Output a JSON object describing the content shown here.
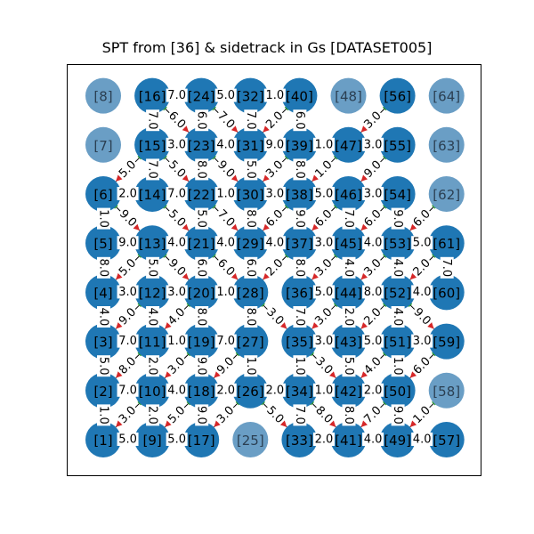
{
  "title": "SPT from [36] & sidetrack in Gs [DATASET005]",
  "colors": {
    "node": "#1f77b4",
    "node_faded": "#6a9ec5",
    "edge": "#000000",
    "arrow_red": "#d62728",
    "tail_green": "#2ca02c"
  },
  "grid": {
    "columns": 8,
    "rows": 8,
    "numbering": "column-major from bottom-left"
  },
  "faded_nodes": [
    "[8]",
    "[7]",
    "[48]",
    "[64]",
    "[63]",
    "[62]",
    "[58]",
    "[25]"
  ],
  "edges": [
    {
      "a": "[16]",
      "b": "[24]",
      "w": "7.0"
    },
    {
      "a": "[24]",
      "b": "[32]",
      "w": "5.0"
    },
    {
      "a": "[32]",
      "b": "[40]",
      "w": "1.0"
    },
    {
      "a": "[15]",
      "b": "[23]",
      "w": "3.0"
    },
    {
      "a": "[23]",
      "b": "[31]",
      "w": "4.0"
    },
    {
      "a": "[31]",
      "b": "[39]",
      "w": "9.0"
    },
    {
      "a": "[39]",
      "b": "[47]",
      "w": "1.0"
    },
    {
      "a": "[47]",
      "b": "[55]",
      "w": "3.0"
    },
    {
      "a": "[6]",
      "b": "[14]",
      "w": "2.0"
    },
    {
      "a": "[14]",
      "b": "[22]",
      "w": "7.0"
    },
    {
      "a": "[22]",
      "b": "[30]",
      "w": "1.0"
    },
    {
      "a": "[30]",
      "b": "[38]",
      "w": "3.0"
    },
    {
      "a": "[38]",
      "b": "[46]",
      "w": "5.0"
    },
    {
      "a": "[46]",
      "b": "[54]",
      "w": "3.0"
    },
    {
      "a": "[5]",
      "b": "[13]",
      "w": "9.0"
    },
    {
      "a": "[13]",
      "b": "[21]",
      "w": "4.0"
    },
    {
      "a": "[21]",
      "b": "[29]",
      "w": "4.0"
    },
    {
      "a": "[29]",
      "b": "[37]",
      "w": "4.0"
    },
    {
      "a": "[37]",
      "b": "[45]",
      "w": "3.0"
    },
    {
      "a": "[45]",
      "b": "[53]",
      "w": "4.0"
    },
    {
      "a": "[53]",
      "b": "[61]",
      "w": "5.0"
    },
    {
      "a": "[4]",
      "b": "[12]",
      "w": "3.0"
    },
    {
      "a": "[12]",
      "b": "[20]",
      "w": "3.0"
    },
    {
      "a": "[20]",
      "b": "[28]",
      "w": "1.0"
    },
    {
      "a": "[36]",
      "b": "[44]",
      "w": "5.0"
    },
    {
      "a": "[44]",
      "b": "[52]",
      "w": "8.0"
    },
    {
      "a": "[52]",
      "b": "[60]",
      "w": "4.0"
    },
    {
      "a": "[3]",
      "b": "[11]",
      "w": "7.0"
    },
    {
      "a": "[11]",
      "b": "[19]",
      "w": "1.0"
    },
    {
      "a": "[19]",
      "b": "[27]",
      "w": "7.0"
    },
    {
      "a": "[35]",
      "b": "[43]",
      "w": "3.0"
    },
    {
      "a": "[43]",
      "b": "[51]",
      "w": "5.0"
    },
    {
      "a": "[51]",
      "b": "[59]",
      "w": "3.0"
    },
    {
      "a": "[2]",
      "b": "[10]",
      "w": "7.0"
    },
    {
      "a": "[10]",
      "b": "[18]",
      "w": "4.0"
    },
    {
      "a": "[18]",
      "b": "[26]",
      "w": "2.0"
    },
    {
      "a": "[26]",
      "b": "[34]",
      "w": "2.0"
    },
    {
      "a": "[34]",
      "b": "[42]",
      "w": "1.0"
    },
    {
      "a": "[42]",
      "b": "[50]",
      "w": "2.0"
    },
    {
      "a": "[1]",
      "b": "[9]",
      "w": "5.0"
    },
    {
      "a": "[9]",
      "b": "[17]",
      "w": "5.0"
    },
    {
      "a": "[33]",
      "b": "[41]",
      "w": "2.0"
    },
    {
      "a": "[41]",
      "b": "[49]",
      "w": "4.0"
    },
    {
      "a": "[49]",
      "b": "[57]",
      "w": "4.0"
    },
    {
      "a": "[16]",
      "b": "[15]",
      "w": "7.0"
    },
    {
      "a": "[24]",
      "b": "[23]",
      "w": "6.0"
    },
    {
      "a": "[32]",
      "b": "[31]",
      "w": "7.0"
    },
    {
      "a": "[40]",
      "b": "[39]",
      "w": "6.0"
    },
    {
      "a": "[15]",
      "b": "[14]",
      "w": "7.0"
    },
    {
      "a": "[23]",
      "b": "[22]",
      "w": "8.0"
    },
    {
      "a": "[31]",
      "b": "[30]",
      "w": "5.0"
    },
    {
      "a": "[39]",
      "b": "[38]",
      "w": "8.0"
    },
    {
      "a": "[6]",
      "b": "[5]",
      "w": "1.0"
    },
    {
      "a": "[22]",
      "b": "[21]",
      "w": "5.0"
    },
    {
      "a": "[30]",
      "b": "[29]",
      "w": "8.0"
    },
    {
      "a": "[38]",
      "b": "[37]",
      "w": "9.0"
    },
    {
      "a": "[46]",
      "b": "[45]",
      "w": "7.0"
    },
    {
      "a": "[54]",
      "b": "[53]",
      "w": "9.0"
    },
    {
      "a": "[5]",
      "b": "[4]",
      "w": "8.0"
    },
    {
      "a": "[13]",
      "b": "[12]",
      "w": "5.0"
    },
    {
      "a": "[21]",
      "b": "[20]",
      "w": "6.0"
    },
    {
      "a": "[29]",
      "b": "[28]",
      "w": "6.0"
    },
    {
      "a": "[37]",
      "b": "[36]",
      "w": "8.0"
    },
    {
      "a": "[45]",
      "b": "[44]",
      "w": "4.0"
    },
    {
      "a": "[53]",
      "b": "[52]",
      "w": "4.0"
    },
    {
      "a": "[61]",
      "b": "[60]",
      "w": "7.0"
    },
    {
      "a": "[12]",
      "b": "[11]",
      "w": "4.0"
    },
    {
      "a": "[20]",
      "b": "[19]",
      "w": "8.0"
    },
    {
      "a": "[28]",
      "b": "[27]",
      "w": "8.0"
    },
    {
      "a": "[36]",
      "b": "[35]",
      "w": "7.0"
    },
    {
      "a": "[44]",
      "b": "[43]",
      "w": "2.0"
    },
    {
      "a": "[52]",
      "b": "[51]",
      "w": "4.0"
    },
    {
      "a": "[11]",
      "b": "[10]",
      "w": "2.0"
    },
    {
      "a": "[19]",
      "b": "[18]",
      "w": "9.0"
    },
    {
      "a": "[27]",
      "b": "[26]",
      "w": "1.0"
    },
    {
      "a": "[35]",
      "b": "[34]",
      "w": "1.0"
    },
    {
      "a": "[43]",
      "b": "[42]",
      "w": "5.0"
    },
    {
      "a": "[51]",
      "b": "[50]",
      "w": "1.0"
    },
    {
      "a": "[10]",
      "b": "[9]",
      "w": "2.0"
    },
    {
      "a": "[18]",
      "b": "[17]",
      "w": "9.0"
    },
    {
      "a": "[34]",
      "b": "[33]",
      "w": "7.0"
    },
    {
      "a": "[42]",
      "b": "[41]",
      "w": "8.0"
    },
    {
      "a": "[50]",
      "b": "[49]",
      "w": "9.0"
    },
    {
      "a": "[4]",
      "b": "[3]",
      "w": "4.0"
    },
    {
      "a": "[3]",
      "b": "[2]",
      "w": "5.0"
    },
    {
      "a": "[2]",
      "b": "[1]",
      "w": "1.0"
    },
    {
      "a": "[16]",
      "b": "[23]",
      "w": "6.0"
    },
    {
      "a": "[24]",
      "b": "[31]",
      "w": "7.0"
    },
    {
      "a": "[40]",
      "b": "[31]",
      "w": "2.0"
    },
    {
      "a": "[56]",
      "b": "[47]",
      "w": "3.0"
    },
    {
      "a": "[15]",
      "b": "[6]",
      "w": "5.0"
    },
    {
      "a": "[15]",
      "b": "[22]",
      "w": "5.0"
    },
    {
      "a": "[23]",
      "b": "[30]",
      "w": "9.0"
    },
    {
      "a": "[39]",
      "b": "[30]",
      "w": "3.0"
    },
    {
      "a": "[47]",
      "b": "[38]",
      "w": "1.0"
    },
    {
      "a": "[55]",
      "b": "[46]",
      "w": "9.0"
    },
    {
      "a": "[6]",
      "b": "[13]",
      "w": "9.0"
    },
    {
      "a": "[14]",
      "b": "[21]",
      "w": "5.0"
    },
    {
      "a": "[22]",
      "b": "[29]",
      "w": "7.0"
    },
    {
      "a": "[38]",
      "b": "[29]",
      "w": "6.0"
    },
    {
      "a": "[46]",
      "b": "[37]",
      "w": "6.0"
    },
    {
      "a": "[54]",
      "b": "[45]",
      "w": "6.0"
    },
    {
      "a": "[62]",
      "b": "[53]",
      "w": "6.0"
    },
    {
      "a": "[13]",
      "b": "[4]",
      "w": "5.0"
    },
    {
      "a": "[13]",
      "b": "[20]",
      "w": "9.0"
    },
    {
      "a": "[21]",
      "b": "[28]",
      "w": "6.0"
    },
    {
      "a": "[37]",
      "b": "[28]",
      "w": "2.0"
    },
    {
      "a": "[45]",
      "b": "[36]",
      "w": "3.0"
    },
    {
      "a": "[53]",
      "b": "[44]",
      "w": "3.0"
    },
    {
      "a": "[61]",
      "b": "[52]",
      "w": "2.0"
    },
    {
      "a": "[12]",
      "b": "[3]",
      "w": "9.0"
    },
    {
      "a": "[20]",
      "b": "[11]",
      "w": "4.0"
    },
    {
      "a": "[28]",
      "b": "[35]",
      "w": "3.0"
    },
    {
      "a": "[44]",
      "b": "[35]",
      "w": "3.0"
    },
    {
      "a": "[52]",
      "b": "[43]",
      "w": "2.0"
    },
    {
      "a": "[52]",
      "b": "[59]",
      "w": "9.0"
    },
    {
      "a": "[11]",
      "b": "[2]",
      "w": "8.0"
    },
    {
      "a": "[19]",
      "b": "[10]",
      "w": "3.0"
    },
    {
      "a": "[35]",
      "b": "[42]",
      "w": "3.0"
    },
    {
      "a": "[51]",
      "b": "[42]",
      "w": "4.0"
    },
    {
      "a": "[59]",
      "b": "[50]",
      "w": "6.0"
    },
    {
      "a": "[10]",
      "b": "[1]",
      "w": "3.0"
    },
    {
      "a": "[27]",
      "b": "[18]",
      "w": "9.0"
    },
    {
      "a": "[26]",
      "b": "[33]",
      "w": "5.0"
    },
    {
      "a": "[34]",
      "b": "[41]",
      "w": "8.0"
    },
    {
      "a": "[50]",
      "b": "[41]",
      "w": "7.0"
    },
    {
      "a": "[58]",
      "b": "[49]",
      "w": "1.0"
    },
    {
      "a": "[26]",
      "b": "[17]",
      "w": "3.0"
    },
    {
      "a": "[18]",
      "b": "[9]",
      "w": "5.0"
    }
  ]
}
